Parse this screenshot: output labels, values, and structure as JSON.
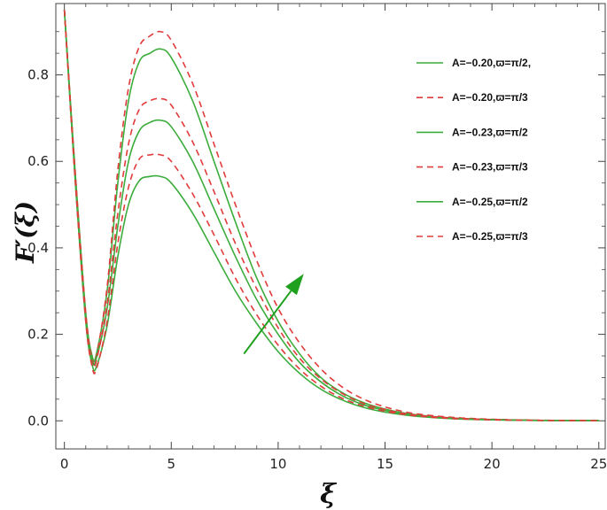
{
  "chart_data": {
    "type": "line",
    "title": "",
    "xlabel": "ξ",
    "ylabel": "F′(ξ)",
    "xlim": [
      -0.4,
      25.3
    ],
    "ylim": [
      -0.065,
      0.965
    ],
    "xticks": [
      0,
      5,
      10,
      15,
      20,
      25
    ],
    "yticks": [
      0.0,
      0.2,
      0.4,
      0.6,
      0.8
    ],
    "ytick_labels": [
      "0.0",
      "0.2",
      "0.4",
      "0.6",
      "0.8"
    ],
    "grid": false,
    "legend_position": "top-right",
    "colors": {
      "solid": "#3cac3c",
      "dashed": "#e23b3b",
      "arrow": "#1fa01f"
    },
    "series": [
      {
        "name": "A=−0.20,ϖ=π/2,",
        "style": "solid",
        "color": "#3cac3c",
        "x": [
          0,
          0.5,
          1,
          1.3,
          1.5,
          2,
          2.5,
          3,
          3.5,
          4,
          4.5,
          5,
          6,
          7,
          8,
          9,
          10,
          11,
          12,
          13,
          14,
          15,
          16,
          17,
          18,
          19,
          20,
          21,
          22,
          23,
          24,
          25
        ],
        "y": [
          0.95,
          0.58,
          0.25,
          0.15,
          0.155,
          0.3,
          0.55,
          0.74,
          0.83,
          0.85,
          0.86,
          0.84,
          0.74,
          0.6,
          0.46,
          0.33,
          0.23,
          0.155,
          0.1,
          0.065,
          0.042,
          0.027,
          0.017,
          0.011,
          0.007,
          0.0045,
          0.003,
          0.002,
          0.0013,
          0.0009,
          0.0006,
          0.0004
        ]
      },
      {
        "name": "A=−0.20,ϖ=π/3",
        "style": "dashed",
        "color": "#e23b3b",
        "x": [
          0,
          0.5,
          1,
          1.3,
          1.5,
          2,
          2.5,
          3,
          3.5,
          4,
          4.5,
          5,
          6,
          7,
          8,
          9,
          10,
          11,
          12,
          13,
          14,
          15,
          16,
          17,
          18,
          19,
          20,
          21,
          22,
          23,
          24,
          25
        ],
        "y": [
          0.95,
          0.58,
          0.25,
          0.145,
          0.15,
          0.31,
          0.58,
          0.77,
          0.865,
          0.89,
          0.9,
          0.88,
          0.78,
          0.64,
          0.5,
          0.37,
          0.26,
          0.18,
          0.12,
          0.078,
          0.05,
          0.032,
          0.02,
          0.013,
          0.0085,
          0.0055,
          0.0035,
          0.0023,
          0.0015,
          0.001,
          0.0007,
          0.0004
        ]
      },
      {
        "name": "A=−0.23,ϖ=π/2",
        "style": "solid",
        "color": "#3cac3c",
        "x": [
          0,
          0.5,
          1,
          1.3,
          1.5,
          2,
          2.5,
          3,
          3.5,
          4,
          4.5,
          5,
          6,
          7,
          8,
          9,
          10,
          11,
          12,
          13,
          14,
          15,
          16,
          17,
          18,
          19,
          20,
          21,
          22,
          23,
          24,
          25
        ],
        "y": [
          0.95,
          0.57,
          0.24,
          0.14,
          0.145,
          0.26,
          0.45,
          0.6,
          0.67,
          0.69,
          0.695,
          0.68,
          0.6,
          0.49,
          0.38,
          0.28,
          0.2,
          0.135,
          0.09,
          0.058,
          0.037,
          0.024,
          0.015,
          0.0095,
          0.006,
          0.0039,
          0.0025,
          0.0016,
          0.001,
          0.0007,
          0.0005,
          0.0003
        ]
      },
      {
        "name": "A=−0.23,ϖ=π/3",
        "style": "dashed",
        "color": "#e23b3b",
        "x": [
          0,
          0.5,
          1,
          1.3,
          1.5,
          2,
          2.5,
          3,
          3.5,
          4,
          4.5,
          5,
          6,
          7,
          8,
          9,
          10,
          11,
          12,
          13,
          14,
          15,
          16,
          17,
          18,
          19,
          20,
          21,
          22,
          23,
          24,
          25
        ],
        "y": [
          0.95,
          0.57,
          0.24,
          0.135,
          0.14,
          0.27,
          0.48,
          0.64,
          0.72,
          0.74,
          0.745,
          0.73,
          0.645,
          0.53,
          0.41,
          0.305,
          0.215,
          0.145,
          0.097,
          0.063,
          0.04,
          0.026,
          0.016,
          0.0105,
          0.0067,
          0.0043,
          0.0028,
          0.0018,
          0.0011,
          0.0007,
          0.0005,
          0.0003
        ]
      },
      {
        "name": "A=−0.25,ϖ=π/2",
        "style": "solid",
        "color": "#3cac3c",
        "x": [
          0,
          0.5,
          1,
          1.3,
          1.5,
          2,
          2.5,
          3,
          3.5,
          4,
          4.5,
          5,
          6,
          7,
          8,
          9,
          10,
          11,
          12,
          13,
          14,
          15,
          16,
          17,
          18,
          19,
          20,
          21,
          22,
          23,
          24,
          25
        ],
        "y": [
          0.95,
          0.56,
          0.23,
          0.13,
          0.125,
          0.22,
          0.38,
          0.5,
          0.555,
          0.565,
          0.565,
          0.55,
          0.48,
          0.39,
          0.3,
          0.225,
          0.16,
          0.11,
          0.073,
          0.048,
          0.031,
          0.02,
          0.013,
          0.0082,
          0.0052,
          0.0033,
          0.0021,
          0.0014,
          0.0009,
          0.0006,
          0.0004,
          0.0002
        ]
      },
      {
        "name": "A=−0.25,ϖ=π/3",
        "style": "dashed",
        "color": "#e23b3b",
        "x": [
          0,
          0.5,
          1,
          1.3,
          1.5,
          2,
          2.5,
          3,
          3.5,
          4,
          4.5,
          5,
          6,
          7,
          8,
          9,
          10,
          11,
          12,
          13,
          14,
          15,
          16,
          17,
          18,
          19,
          20,
          21,
          22,
          23,
          24,
          25
        ],
        "y": [
          0.95,
          0.56,
          0.23,
          0.125,
          0.12,
          0.23,
          0.41,
          0.54,
          0.605,
          0.615,
          0.615,
          0.6,
          0.525,
          0.43,
          0.33,
          0.245,
          0.175,
          0.12,
          0.08,
          0.052,
          0.034,
          0.022,
          0.014,
          0.009,
          0.0057,
          0.0036,
          0.0023,
          0.0015,
          0.001,
          0.0006,
          0.0004,
          0.0002
        ]
      }
    ],
    "annotation_arrow": {
      "from": [
        8.4,
        0.155
      ],
      "to": [
        11.2,
        0.34
      ]
    }
  }
}
